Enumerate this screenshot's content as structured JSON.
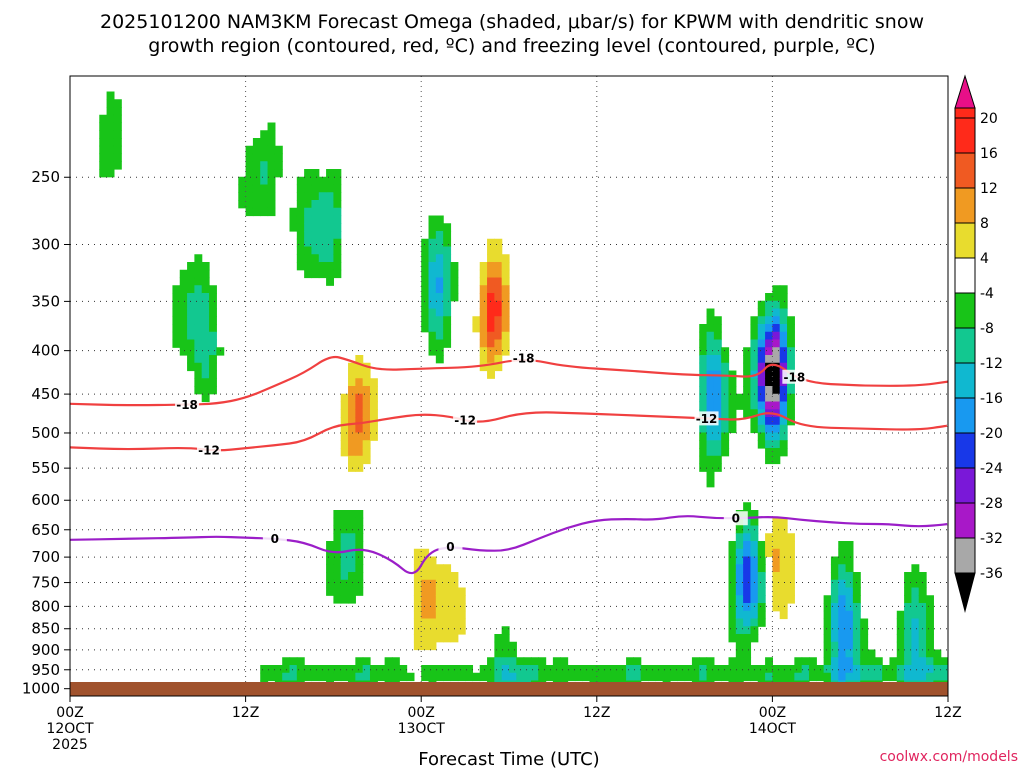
{
  "chart_data": {
    "type": "heatmap",
    "title_lines": [
      "2025101200 NAM3KM Forecast Omega (shaded, μbar/s) for KPWM with dendritic snow",
      "growth region (contoured, red, ºC) and freezing level (contoured, purple, ºC)"
    ],
    "xlabel": "Forecast Time (UTC)",
    "x_range_hours": [
      0,
      60
    ],
    "x_ticks": [
      {
        "hour": 0,
        "lines": [
          "00Z",
          "12OCT",
          "2025"
        ]
      },
      {
        "hour": 12,
        "lines": [
          "12Z"
        ]
      },
      {
        "hour": 24,
        "lines": [
          "00Z",
          "13OCT"
        ]
      },
      {
        "hour": 36,
        "lines": [
          "12Z"
        ]
      },
      {
        "hour": 48,
        "lines": [
          "00Z",
          "14OCT"
        ]
      },
      {
        "hour": 60,
        "lines": [
          "12Z"
        ]
      }
    ],
    "y_scale": "log-pressure",
    "y_range_hPa": [
      1020,
      190
    ],
    "y_ticks": [
      250,
      300,
      350,
      400,
      450,
      500,
      550,
      600,
      650,
      700,
      750,
      800,
      850,
      900,
      950,
      1000
    ],
    "colorbar": {
      "labels": [
        "20",
        "16",
        "12",
        "8",
        "4",
        "-4",
        "-8",
        "-12",
        "-16",
        "-20",
        "-24",
        "-28",
        "-32",
        "-36"
      ],
      "colors": [
        "#e80f88",
        "#ff2a1a",
        "#f05a22",
        "#f09a22",
        "#e8b030",
        "#e8dc2e",
        "#ffffff",
        "#18c418",
        "#12c890",
        "#10b8d0",
        "#1899f0",
        "#1838e8",
        "#7a18d8",
        "#a818c8",
        "#a8a8a8",
        "#000000"
      ]
    },
    "omega_features": [
      {
        "t": 3.2,
        "p": 230,
        "w": -6
      },
      {
        "t": 8.0,
        "p": 350,
        "w": -8
      },
      {
        "t": 9.5,
        "p": 400,
        "w": -10
      },
      {
        "t": 13.0,
        "p": 250,
        "w": -8
      },
      {
        "t": 15.5,
        "p": 270,
        "w": -6
      },
      {
        "t": 17.5,
        "p": 290,
        "w": -12
      },
      {
        "t": 19.0,
        "p": 700,
        "w": -10
      },
      {
        "t": 19.8,
        "p": 480,
        "w": 12
      },
      {
        "t": 25.0,
        "p": 330,
        "w": -16
      },
      {
        "t": 29.0,
        "p": 360,
        "w": 16
      },
      {
        "t": 24.5,
        "p": 770,
        "w": 10
      },
      {
        "t": 27.0,
        "p": 850,
        "w": 6
      },
      {
        "t": 44.0,
        "p": 450,
        "w": -20
      },
      {
        "t": 48.0,
        "p": 430,
        "w": -40
      },
      {
        "t": 48.0,
        "p": 700,
        "w": 12
      },
      {
        "t": 46.5,
        "p": 740,
        "w": -24
      },
      {
        "t": 53.0,
        "p": 850,
        "w": -20
      },
      {
        "t": 58.0,
        "p": 880,
        "w": -14
      },
      {
        "t": 30.0,
        "p": 960,
        "w": -8
      }
    ],
    "series": [
      {
        "name": "-18 ºC",
        "color": "#f04040",
        "x": [
          0,
          4,
          8,
          10,
          12,
          14,
          16,
          17.8,
          19,
          21,
          24,
          28,
          31,
          34,
          38,
          42,
          45,
          47,
          48,
          50,
          54,
          58,
          60
        ],
        "p": [
          462,
          464,
          463,
          462,
          455,
          440,
          425,
          405,
          410,
          422,
          420,
          418,
          408,
          418,
          422,
          427,
          428,
          430,
          410,
          436,
          440,
          440,
          435
        ],
        "label_x": [
          8.0,
          31.0,
          49.5
        ]
      },
      {
        "name": "-12 ºC",
        "color": "#f04040",
        "x": [
          0,
          4,
          8,
          10,
          12,
          14,
          16,
          18,
          20,
          22,
          24,
          26,
          28,
          31,
          35,
          40,
          44,
          46,
          48,
          50,
          54,
          58,
          60
        ],
        "p": [
          520,
          523,
          520,
          525,
          521,
          517,
          512,
          490,
          487,
          480,
          475,
          478,
          488,
          472,
          474,
          478,
          481,
          483,
          470,
          492,
          494,
          496,
          490
        ],
        "label_x": [
          9.5,
          27.0,
          43.5
        ]
      },
      {
        "name": "0 ºC",
        "color": "#9b1ec8",
        "x": [
          0,
          4,
          8,
          10,
          12,
          14,
          16,
          18,
          20,
          22,
          23.5,
          24.5,
          26,
          28,
          30,
          32,
          34,
          36,
          38,
          40,
          42,
          44,
          46,
          48,
          50,
          52,
          54,
          56,
          58,
          60
        ],
        "p": [
          668,
          666,
          664,
          662,
          664,
          666,
          672,
          695,
          682,
          705,
          742,
          690,
          680,
          688,
          688,
          666,
          646,
          633,
          631,
          633,
          625,
          630,
          630,
          627,
          633,
          637,
          640,
          640,
          645,
          640
        ],
        "label_x": [
          14.0,
          26.0,
          45.5
        ]
      }
    ],
    "ground_band": "surface"
  },
  "watermark": "coolwx.com/models"
}
